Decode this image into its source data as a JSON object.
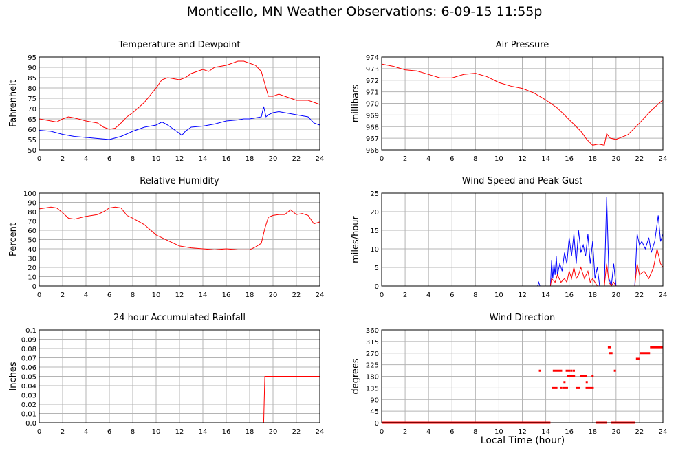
{
  "page": {
    "title": "Monticello, MN Weather Observations: 6-09-15 11:55p",
    "xlabel": "Local Time (hour)"
  },
  "colors": {
    "red": "#ff0000",
    "blue": "#0000ff",
    "grid": "#b4b4b4",
    "frame": "#000000"
  },
  "chart_data": [
    {
      "id": "temp",
      "type": "line",
      "title": "Temperature and Dewpoint",
      "ylabel": "Fahrenheit",
      "xlim": [
        0,
        24
      ],
      "ylim": [
        50,
        95
      ],
      "yticks": [
        "50",
        "55",
        "60",
        "65",
        "70",
        "75",
        "80",
        "85",
        "90",
        "95"
      ],
      "xticks": [
        "0",
        "2",
        "4",
        "6",
        "8",
        "10",
        "12",
        "14",
        "16",
        "18",
        "20",
        "22",
        "24"
      ],
      "series": [
        {
          "color": "#ff0000",
          "x": [
            0,
            1,
            1.5,
            2,
            2.5,
            3,
            4,
            5,
            5.5,
            6,
            6.5,
            7,
            7.5,
            8,
            9,
            10,
            10.5,
            11,
            11.5,
            12,
            12.5,
            13,
            14,
            14.5,
            15,
            16,
            16.5,
            17,
            17.5,
            18,
            18.5,
            19,
            19.3,
            19.6,
            20,
            20.5,
            21,
            22,
            23,
            23.5,
            24
          ],
          "y": [
            65,
            64,
            63.5,
            65,
            66,
            65.5,
            64,
            63,
            61,
            60,
            60.5,
            63,
            66,
            68,
            73,
            80,
            84,
            85,
            84.5,
            84,
            85,
            87,
            89,
            88,
            90,
            91,
            92,
            93,
            93,
            92,
            91,
            88,
            82,
            76,
            76,
            77,
            76,
            74,
            74,
            73,
            72
          ]
        },
        {
          "color": "#0000ff",
          "x": [
            0,
            1,
            2,
            3,
            4,
            5,
            6,
            7,
            8,
            9,
            10,
            10.5,
            11,
            11.5,
            12,
            12.2,
            12.5,
            13,
            14,
            15,
            16,
            17,
            17.5,
            18,
            18.5,
            19,
            19.2,
            19.4,
            19.6,
            20,
            20.5,
            21,
            22,
            23,
            23.5,
            24
          ],
          "y": [
            59.5,
            59,
            57.5,
            56.5,
            56,
            55.5,
            55,
            56.5,
            59,
            61,
            62,
            63.5,
            62,
            60,
            58,
            57,
            59,
            61,
            61.5,
            62.5,
            64,
            64.5,
            65,
            65,
            65.5,
            66,
            71,
            66,
            67,
            68,
            68.5,
            68,
            67,
            66,
            63,
            62
          ]
        }
      ]
    },
    {
      "id": "pressure",
      "type": "line",
      "title": "Air Pressure",
      "ylabel": "millibars",
      "xlim": [
        0,
        24
      ],
      "ylim": [
        966,
        974
      ],
      "yticks": [
        "966",
        "967",
        "968",
        "969",
        "970",
        "971",
        "972",
        "973",
        "974"
      ],
      "xticks": [
        "0",
        "2",
        "4",
        "6",
        "8",
        "10",
        "12",
        "14",
        "16",
        "18",
        "20",
        "22",
        "24"
      ],
      "series": [
        {
          "color": "#ff0000",
          "x": [
            0,
            1,
            2,
            3,
            4,
            5,
            6,
            7,
            8,
            9,
            10,
            11,
            12,
            13,
            14,
            15,
            16,
            17,
            17.5,
            18,
            18.5,
            19,
            19.2,
            19.5,
            20,
            21,
            22,
            23,
            24
          ],
          "y": [
            973.4,
            973.2,
            972.9,
            972.8,
            972.5,
            972.2,
            972.2,
            972.5,
            972.6,
            972.3,
            971.8,
            971.5,
            971.3,
            970.9,
            970.3,
            969.6,
            968.6,
            967.6,
            966.9,
            966.4,
            966.5,
            966.4,
            967.4,
            967.0,
            966.9,
            967.3,
            968.3,
            969.4,
            970.3
          ]
        }
      ]
    },
    {
      "id": "humidity",
      "type": "line",
      "title": "Relative Humidity",
      "ylabel": "Percent",
      "xlim": [
        0,
        24
      ],
      "ylim": [
        0,
        100
      ],
      "yticks": [
        "0",
        "10",
        "20",
        "30",
        "40",
        "50",
        "60",
        "70",
        "80",
        "90",
        "100"
      ],
      "xticks": [
        "0",
        "2",
        "4",
        "6",
        "8",
        "10",
        "12",
        "14",
        "16",
        "18",
        "20",
        "22",
        "24"
      ],
      "series": [
        {
          "color": "#ff0000",
          "x": [
            0,
            0.5,
            1,
            1.5,
            2,
            2.5,
            3,
            4,
            5,
            5.5,
            6,
            6.5,
            7,
            7.5,
            8,
            9,
            10,
            10.5,
            11,
            12,
            13,
            14,
            15,
            16,
            17,
            18,
            18.5,
            19,
            19.3,
            19.6,
            20,
            20.5,
            21,
            21.5,
            22,
            22.5,
            23,
            23.5,
            24
          ],
          "y": [
            83,
            84,
            85,
            84,
            79,
            73,
            72,
            75,
            77,
            80,
            84,
            85,
            84,
            76,
            73,
            66,
            55,
            52,
            49,
            43,
            41,
            40,
            39,
            40,
            39,
            39,
            42,
            46,
            62,
            74,
            76,
            77,
            77,
            82,
            77,
            78,
            76,
            67,
            69
          ]
        }
      ]
    },
    {
      "id": "wind",
      "type": "line",
      "title": "Wind Speed and Peak Gust",
      "ylabel": "miles/hour",
      "xlim": [
        0,
        24
      ],
      "ylim": [
        0,
        25
      ],
      "yticks": [
        "0",
        "5",
        "10",
        "15",
        "20",
        "25"
      ],
      "xticks": [
        "0",
        "2",
        "4",
        "6",
        "8",
        "10",
        "12",
        "14",
        "16",
        "18",
        "20",
        "22",
        "24"
      ],
      "series": [
        {
          "color": "#0000ff",
          "x": [
            0,
            13.3,
            13.4,
            13.5,
            14.4,
            14.5,
            14.6,
            14.7,
            14.8,
            14.9,
            15.0,
            15.2,
            15.4,
            15.6,
            15.8,
            16.0,
            16.2,
            16.4,
            16.6,
            16.8,
            17.0,
            17.2,
            17.4,
            17.6,
            17.8,
            18.0,
            18.2,
            18.4,
            18.6,
            19.0,
            19.2,
            19.4,
            19.6,
            19.8,
            20.0,
            20.1,
            21.6,
            21.8,
            22.0,
            22.2,
            22.5,
            22.8,
            23.0,
            23.3,
            23.6,
            23.8,
            24.0
          ],
          "y": [
            0,
            0,
            1,
            0,
            0,
            7,
            2,
            6,
            3,
            8,
            3,
            6,
            4,
            9,
            6,
            13,
            8,
            14,
            6,
            15,
            9,
            11,
            8,
            14,
            6,
            12,
            2,
            5,
            0,
            0,
            24,
            2,
            0,
            6,
            0,
            0,
            0,
            14,
            11,
            12,
            10,
            13,
            9,
            12,
            19,
            12,
            14
          ]
        },
        {
          "color": "#ff0000",
          "x": [
            0,
            14.4,
            14.5,
            14.8,
            15.0,
            15.3,
            15.6,
            15.8,
            16.0,
            16.2,
            16.4,
            16.6,
            16.8,
            17.0,
            17.3,
            17.6,
            17.8,
            18.0,
            18.2,
            18.4,
            19.0,
            19.2,
            19.4,
            19.6,
            19.8,
            20.0,
            21.6,
            21.8,
            22.0,
            22.4,
            22.8,
            23.2,
            23.5,
            23.8,
            24.0
          ],
          "y": [
            0,
            0,
            2,
            1,
            3,
            1,
            2,
            1,
            4,
            2,
            5,
            2,
            3,
            5,
            2,
            4,
            1,
            2,
            1,
            0,
            0,
            6,
            1,
            0,
            1,
            0,
            0,
            6,
            3,
            4,
            2,
            5,
            10,
            6,
            5
          ]
        }
      ]
    },
    {
      "id": "rain",
      "type": "line",
      "title": "24 hour Accumulated Rainfall",
      "ylabel": "Inches",
      "xlim": [
        0,
        24
      ],
      "ylim": [
        0,
        0.1
      ],
      "yticks": [
        "0.0",
        "0.01",
        "0.02",
        "0.03",
        "0.04",
        "0.05",
        "0.06",
        "0.07",
        "0.08",
        "0.09",
        "0.1"
      ],
      "xticks": [
        "0",
        "2",
        "4",
        "6",
        "8",
        "10",
        "12",
        "14",
        "16",
        "18",
        "20",
        "22",
        "24"
      ],
      "series": [
        {
          "color": "#ff0000",
          "x": [
            0,
            19.2,
            19.3,
            24
          ],
          "y": [
            0,
            0,
            0.05,
            0.05
          ]
        }
      ]
    },
    {
      "id": "direction",
      "type": "scatter",
      "title": "Wind Direction",
      "ylabel": "degrees",
      "xlim": [
        0,
        24
      ],
      "ylim": [
        0,
        360
      ],
      "yticks": [
        "0",
        "45",
        "90",
        "135",
        "180",
        "225",
        "270",
        "315",
        "360"
      ],
      "xticks": [
        "0",
        "2",
        "4",
        "6",
        "8",
        "10",
        "12",
        "14",
        "16",
        "18",
        "20",
        "22",
        "24"
      ],
      "color": "#ff0000",
      "runs": [
        {
          "x0": 0,
          "x1": 14.4,
          "y": 0
        },
        {
          "x0": 18.3,
          "x1": 19.2,
          "y": 0
        },
        {
          "x0": 19.6,
          "x1": 21.6,
          "y": 0
        },
        {
          "x0": 14.5,
          "x1": 15.0,
          "y": 135
        },
        {
          "x0": 15.4,
          "x1": 15.9,
          "y": 135
        },
        {
          "x0": 16.6,
          "x1": 16.9,
          "y": 135
        },
        {
          "x0": 17.4,
          "x1": 18.1,
          "y": 135
        },
        {
          "x0": 14.6,
          "x1": 15.4,
          "y": 202
        },
        {
          "x0": 15.7,
          "x1": 16.1,
          "y": 202
        },
        {
          "x0": 15.8,
          "x1": 16.5,
          "y": 180
        },
        {
          "x0": 16.9,
          "x1": 17.5,
          "y": 180
        },
        {
          "x0": 21.7,
          "x1": 22.0,
          "y": 248
        },
        {
          "x0": 22.0,
          "x1": 22.9,
          "y": 270
        },
        {
          "x0": 22.9,
          "x1": 24.0,
          "y": 293
        },
        {
          "x0": 19.3,
          "x1": 19.6,
          "y": 293
        },
        {
          "x0": 19.4,
          "x1": 19.7,
          "y": 270
        }
      ],
      "points": [
        {
          "x": 13.5,
          "y": 202
        },
        {
          "x": 15.6,
          "y": 158
        },
        {
          "x": 16.2,
          "y": 202
        },
        {
          "x": 17.5,
          "y": 158
        },
        {
          "x": 18.0,
          "y": 180
        },
        {
          "x": 19.9,
          "y": 202
        },
        {
          "x": 16.4,
          "y": 202
        },
        {
          "x": 15.3,
          "y": 135
        }
      ]
    }
  ]
}
